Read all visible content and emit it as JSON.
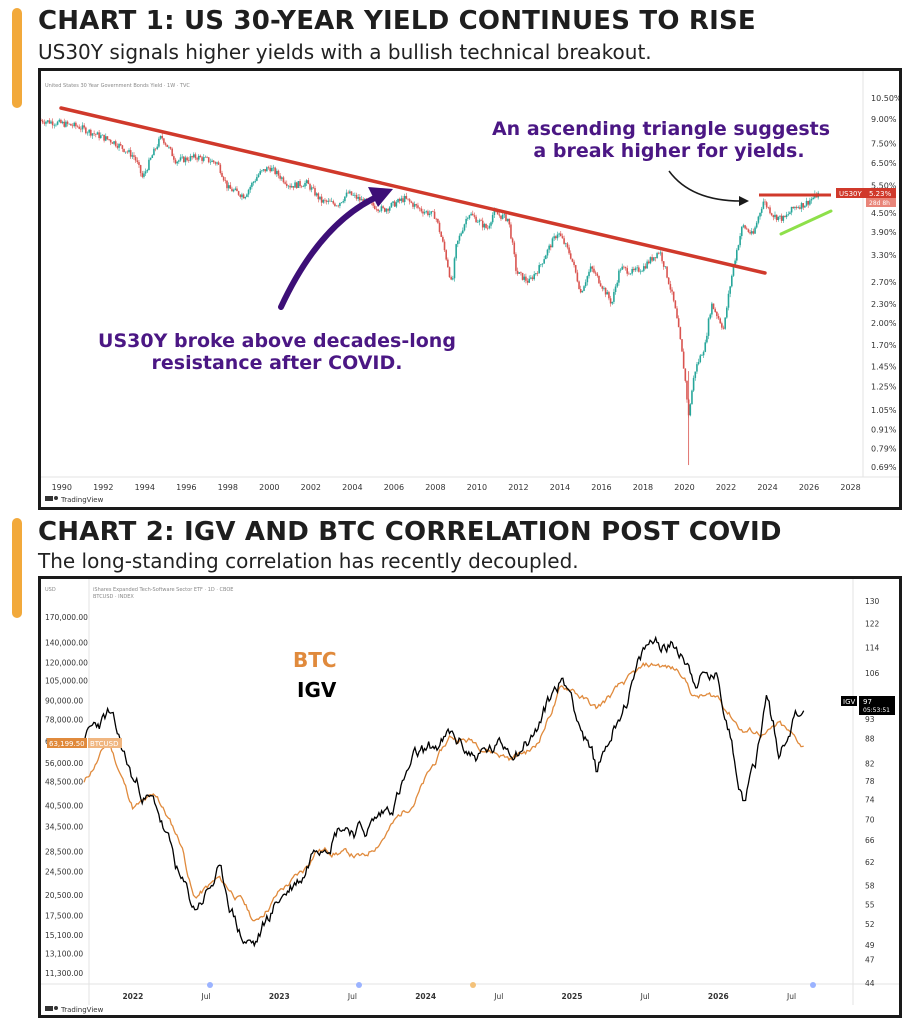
{
  "chart1": {
    "heading": "CHART 1: US 30-YEAR YIELD CONTINUES TO RISE",
    "subheading": "US30Y signals higher yields with a bullish technical breakout.",
    "top_caption": "United States 30 Year Government Bonds Yield · 1W · TVC",
    "callout_triangle_line1": "An ascending triangle suggests",
    "callout_triangle_line2": "a break higher for yields.",
    "callout_breakout_line1": "US30Y broke above decades-long",
    "callout_breakout_line2": "resistance after COVID.",
    "ticker_label": "US30Y",
    "price_label": "5.23%",
    "countdown_label": "28d 8h",
    "footer_brand": "TradingView",
    "colors": {
      "up": "#26a69a",
      "down": "#d9534f",
      "trendline": "#d0392b",
      "support": "#8ee04a",
      "callout": "#4b1784",
      "arrow": "#3d0f77"
    },
    "icons": [
      "tradingview-logo-icon"
    ]
  },
  "chart2": {
    "heading": "CHART 2: IGV AND BTC CORRELATION POST COVID",
    "subheading": "The long-standing correlation has recently decoupled.",
    "top_caption": "iShares Expanded Tech-Software Sector ETF · 1D · CBOE",
    "top_caption2": "BTCUSD · INDEX",
    "legend_btc": "BTC",
    "legend_igv": "IGV",
    "left_unit": "USD",
    "igv_tag": "IGV",
    "igv_tag_value": "97",
    "igv_tag_time": "05:53:51",
    "btc_tag_value": "63,199.50",
    "btc_tag_name": "BTCUSD",
    "footer_brand": "TradingView",
    "colors": {
      "btc": "#e08a3c",
      "igv": "#000000"
    },
    "icons": [
      "tradingview-logo-icon"
    ]
  },
  "chart_data": [
    {
      "type": "line",
      "title": "CHART 1: US 30-YEAR YIELD CONTINUES TO RISE",
      "subtitle": "US30Y signals higher yields with a bullish technical breakout.",
      "scale": "log",
      "x_ticks": [
        "1990",
        "1992",
        "1994",
        "1996",
        "1998",
        "2000",
        "2002",
        "2004",
        "2006",
        "2008",
        "2010",
        "2012",
        "2014",
        "2016",
        "2018",
        "2020",
        "2022",
        "2024",
        "2026",
        "2028"
      ],
      "y_ticks": [
        "10.50%",
        "9.00%",
        "7.50%",
        "6.50%",
        "5.50%",
        "4.50%",
        "3.90%",
        "3.30%",
        "2.70%",
        "2.30%",
        "2.00%",
        "1.70%",
        "1.45%",
        "1.25%",
        "1.05%",
        "0.91%",
        "0.79%",
        "0.69%"
      ],
      "series": [
        {
          "name": "US30Y",
          "x": [
            1989.0,
            1990.0,
            1990.8,
            1991.5,
            1992.5,
            1993.5,
            1993.9,
            1994.8,
            1995.5,
            1996.5,
            1997.5,
            1998.0,
            1998.8,
            1999.5,
            2000.0,
            2001.0,
            2001.8,
            2002.5,
            2003.3,
            2003.8,
            2004.5,
            2005.5,
            2006.5,
            2007.3,
            2008.0,
            2008.8,
            2009.0,
            2009.6,
            2010.5,
            2010.8,
            2011.5,
            2011.9,
            2012.5,
            2013.0,
            2013.9,
            2014.5,
            2015.0,
            2015.5,
            2016.5,
            2016.9,
            2017.5,
            2018.0,
            2018.8,
            2019.5,
            2020.2,
            2020.5,
            2021.0,
            2021.3,
            2021.9,
            2022.8,
            2023.3,
            2023.8,
            2024.3,
            2024.8,
            2025.3,
            2025.8,
            2026.5
          ],
          "values": [
            8.9,
            8.7,
            8.5,
            8.1,
            7.6,
            6.8,
            5.8,
            7.9,
            6.6,
            6.8,
            6.5,
            5.4,
            5.1,
            6.0,
            6.3,
            5.5,
            5.6,
            4.9,
            4.8,
            5.2,
            4.9,
            4.6,
            5.0,
            4.6,
            4.4,
            2.6,
            3.5,
            4.5,
            4.0,
            4.5,
            4.3,
            2.9,
            2.7,
            3.0,
            3.9,
            3.3,
            2.5,
            3.0,
            2.3,
            3.0,
            2.9,
            3.0,
            3.4,
            2.3,
            1.0,
            1.4,
            1.7,
            2.3,
            1.9,
            4.1,
            3.8,
            4.9,
            4.4,
            4.3,
            4.7,
            4.8,
            5.2
          ]
        }
      ],
      "annotations": [
        "An ascending triangle suggests a break higher for yields.",
        "US30Y broke above decades-long resistance after COVID.",
        "US30Y 5.23%"
      ]
    },
    {
      "type": "line",
      "title": "CHART 2: IGV AND BTC CORRELATION POST COVID",
      "subtitle": "The long-standing correlation has recently decoupled.",
      "x_ticks": [
        "2022",
        "Jul",
        "2023",
        "Jul",
        "2024",
        "Jul",
        "2025",
        "Jul",
        "2026",
        "Jul"
      ],
      "y_left_ticks": [
        "170,000.00",
        "140,000.00",
        "120,000.00",
        "105,000.00",
        "90,000.00",
        "78,000.00",
        "66,000.00",
        "56,000.00",
        "48,500.00",
        "40,500.00",
        "34,500.00",
        "28,500.00",
        "24,500.00",
        "20,500.00",
        "17,500.00",
        "15,100.00",
        "13,100.00",
        "11,300.00"
      ],
      "y_right_ticks": [
        "130",
        "122",
        "114",
        "106",
        "93",
        "88",
        "82",
        "78",
        "74",
        "70",
        "66",
        "62",
        "58",
        "55",
        "52",
        "49",
        "47",
        "44"
      ],
      "series": [
        {
          "name": "BTC",
          "x": [
            "2021-09",
            "2021-11",
            "2022-01",
            "2022-03",
            "2022-05",
            "2022-06",
            "2022-08",
            "2022-10",
            "2022-11",
            "2023-01",
            "2023-03",
            "2023-04",
            "2023-06",
            "2023-08",
            "2023-10",
            "2023-12",
            "2024-03",
            "2024-05",
            "2024-08",
            "2024-10",
            "2024-12",
            "2025-01",
            "2025-03",
            "2025-05",
            "2025-07",
            "2025-08",
            "2025-10",
            "2025-11",
            "2026-01",
            "2026-03",
            "2026-05",
            "2026-06",
            "2026-07",
            "2026-08"
          ],
          "values": [
            48000,
            66000,
            40000,
            43000,
            30000,
            20000,
            23000,
            19500,
            16500,
            21000,
            24500,
            29000,
            28500,
            27000,
            34000,
            42000,
            68000,
            66000,
            58000,
            63000,
            97000,
            99000,
            84000,
            100000,
            115000,
            118000,
            112000,
            93000,
            92000,
            72000,
            70000,
            74000,
            68000,
            63199.5
          ]
        },
        {
          "name": "IGV",
          "x": [
            "2021-09",
            "2021-11",
            "2022-01",
            "2022-03",
            "2022-05",
            "2022-06",
            "2022-08",
            "2022-10",
            "2022-11",
            "2023-01",
            "2023-03",
            "2023-04",
            "2023-06",
            "2023-08",
            "2023-10",
            "2023-12",
            "2024-03",
            "2024-05",
            "2024-08",
            "2024-10",
            "2024-12",
            "2025-01",
            "2025-03",
            "2025-05",
            "2025-07",
            "2025-08",
            "2025-10",
            "2025-11",
            "2026-01",
            "2026-03",
            "2026-04",
            "2026-05",
            "2026-06",
            "2026-07",
            "2026-08"
          ],
          "values": [
            88,
            94,
            78,
            72,
            58,
            54,
            60,
            50,
            49,
            56,
            60,
            66,
            70,
            68,
            72,
            82,
            88,
            84,
            86,
            90,
            104,
            100,
            80,
            96,
            112,
            116,
            114,
            106,
            104,
            76,
            82,
            100,
            84,
            94,
            97
          ]
        }
      ],
      "annotations": [
        "IGV 97",
        "BTCUSD 63,199.50"
      ]
    }
  ]
}
